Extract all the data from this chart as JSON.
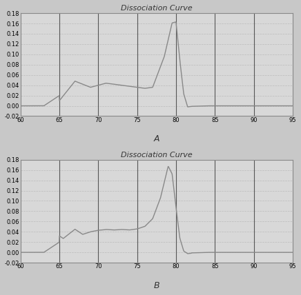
{
  "title": "Dissociation Curve",
  "xlim": [
    60,
    95
  ],
  "ylim": [
    -0.02,
    0.18
  ],
  "xticks": [
    60,
    65,
    70,
    75,
    80,
    85,
    90,
    95
  ],
  "yticks": [
    -0.02,
    0.0,
    0.02,
    0.04,
    0.06,
    0.08,
    0.1,
    0.12,
    0.14,
    0.16,
    0.18
  ],
  "bg_color": "#d8d8d8",
  "line_color": "#888888",
  "vgrid_color": "#555555",
  "hgrid_color": "#bbbbbb",
  "label_A": "A",
  "label_B": "B",
  "fig_color": "#c8c8c8"
}
